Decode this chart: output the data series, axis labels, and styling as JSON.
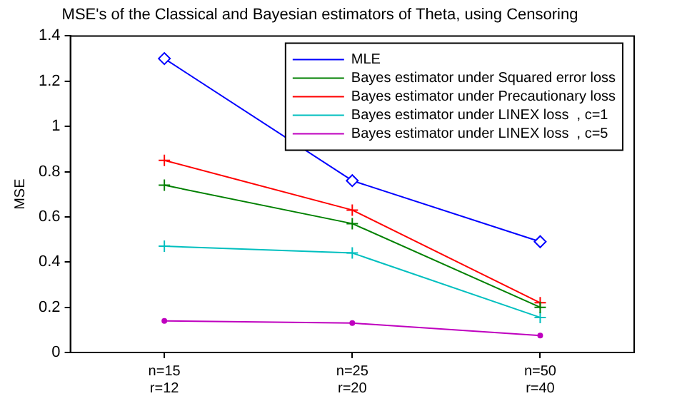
{
  "chart_data": {
    "type": "line",
    "title": "MSE's of the Classical and Bayesian estimators of Theta, using Censoring",
    "ylabel": "MSE",
    "categories": [
      "n=15\nr=12",
      "n=25\nr=20",
      "n=50\nr=40"
    ],
    "ylim": [
      0,
      1.4
    ],
    "yticks": [
      0,
      0.2,
      0.4,
      0.6,
      0.8,
      1,
      1.2,
      1.4
    ],
    "grid": false,
    "legend": "top right",
    "series": [
      {
        "name": "MLE",
        "color": "#0000ff",
        "marker": "diamond",
        "values": [
          1.3,
          0.76,
          0.49
        ]
      },
      {
        "name": "Bayes estimator under Squared error loss",
        "color": "#008000",
        "marker": "cross",
        "values": [
          0.74,
          0.57,
          0.2
        ]
      },
      {
        "name": "Bayes estimator under Precautionary loss",
        "color": "#ff0000",
        "marker": "cross",
        "values": [
          0.85,
          0.63,
          0.22
        ]
      },
      {
        "name": "Bayes estimator under LINEX loss  , c=1",
        "color": "#00bfbf",
        "marker": "cross",
        "values": [
          0.47,
          0.44,
          0.155
        ]
      },
      {
        "name": "Bayes estimator under LINEX loss  , c=5",
        "color": "#bf00bf",
        "marker": "circle",
        "values": [
          0.14,
          0.13,
          0.075
        ]
      }
    ]
  }
}
